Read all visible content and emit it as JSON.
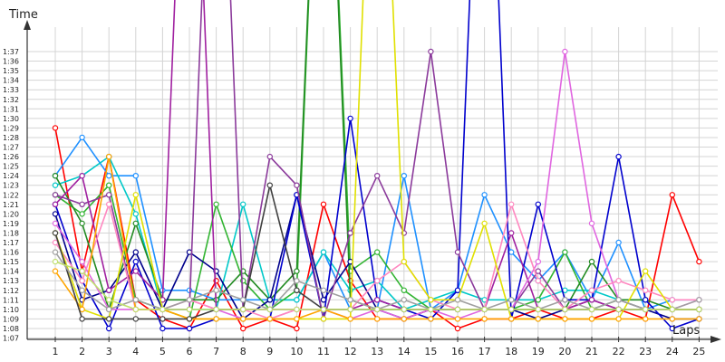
{
  "chart_data": {
    "type": "line",
    "ylabel": "Time",
    "xlabel": "Laps",
    "x": [
      1,
      2,
      3,
      4,
      5,
      6,
      7,
      8,
      9,
      10,
      11,
      12,
      13,
      14,
      15,
      16,
      17,
      18,
      19,
      20,
      21,
      22,
      23,
      24,
      25
    ],
    "xticks": [
      "1",
      "2",
      "3",
      "4",
      "5",
      "6",
      "7",
      "8",
      "9",
      "10",
      "11",
      "12",
      "13",
      "14",
      "15",
      "16",
      "17",
      "18",
      "19",
      "20",
      "21",
      "22",
      "23",
      "24",
      "25"
    ],
    "yticks": [
      "1:07",
      "1:08",
      "1:09",
      "1:10",
      "1:11",
      "1:12",
      "1:13",
      "1:14",
      "1:15",
      "1:16",
      "1:17",
      "1:18",
      "1:19",
      "1:20",
      "1:21",
      "1:22",
      "1:23",
      "1:24",
      "1:25",
      "1:26",
      "1:27",
      "1:28",
      "1:29",
      "1:30",
      "1:31",
      "1:32",
      "1:33",
      "1:34",
      "1:35",
      "1:36",
      "1:37"
    ],
    "ylim_seconds": [
      66,
      98
    ],
    "y_unit": "seconds",
    "grid": true,
    "series": [
      {
        "color": "#ff0000",
        "values": [
          89,
          74,
          86,
          71,
          69,
          68,
          73,
          68,
          69,
          68,
          81,
          73,
          69,
          69,
          70,
          68,
          69,
          69,
          70,
          69,
          69,
          70,
          69,
          82,
          75
        ]
      },
      {
        "color": "#1e90ff",
        "values": [
          84,
          88,
          84,
          84,
          72,
          72,
          71,
          71,
          71,
          71,
          76,
          70,
          70,
          84,
          70,
          72,
          82,
          76,
          73,
          76,
          71,
          77,
          70,
          71,
          71
        ]
      },
      {
        "color": "#00c8c8",
        "values": [
          83,
          84,
          86,
          80,
          70,
          70,
          70,
          81,
          71,
          71,
          76,
          72,
          73,
          70,
          71,
          72,
          71,
          71,
          71,
          72,
          72,
          71,
          70,
          70,
          70
        ]
      },
      {
        "color": "#32b432",
        "values": [
          82,
          80,
          83,
          71,
          70,
          69,
          81,
          73,
          70,
          72,
          140,
          74,
          76,
          72,
          70,
          70,
          70,
          70,
          71,
          76,
          70,
          71,
          70,
          70,
          70
        ]
      },
      {
        "color": "#228b22",
        "values": [
          84,
          79,
          70,
          79,
          71,
          71,
          71,
          74,
          71,
          74,
          140,
          71,
          70,
          70,
          70,
          70,
          70,
          70,
          70,
          70,
          75,
          71,
          71,
          70,
          70
        ]
      },
      {
        "color": "#00008b",
        "values": [
          80,
          71,
          72,
          76,
          70,
          76,
          74,
          69,
          71,
          82,
          71,
          75,
          70,
          69,
          70,
          70,
          70,
          70,
          69,
          70,
          70,
          70,
          70,
          69,
          69
        ]
      },
      {
        "color": "#0000cd",
        "values": [
          81,
          73,
          68,
          75,
          68,
          68,
          69,
          69,
          69,
          82,
          69,
          90,
          71,
          70,
          69,
          72,
          140,
          69,
          81,
          71,
          71,
          86,
          71,
          68,
          69
        ]
      },
      {
        "color": "#8b3a9b",
        "values": [
          82,
          81,
          82,
          70,
          70,
          70,
          140,
          70,
          86,
          83,
          69,
          78,
          84,
          78,
          97,
          76,
          70,
          70,
          74,
          70,
          71,
          70,
          70,
          70,
          70
        ]
      },
      {
        "color": "#a020a0",
        "values": [
          81,
          84,
          72,
          74,
          71,
          140,
          70,
          70,
          70,
          70,
          70,
          70,
          71,
          70,
          70,
          70,
          70,
          78,
          70,
          70,
          71,
          70,
          70,
          70,
          70
        ]
      },
      {
        "color": "#e066e0",
        "values": [
          79,
          75,
          70,
          70,
          70,
          71,
          70,
          69,
          69,
          70,
          70,
          69,
          70,
          69,
          70,
          69,
          70,
          70,
          75,
          97,
          79,
          71,
          70,
          70,
          71
        ]
      },
      {
        "color": "#ff88c0",
        "values": [
          77,
          73,
          81,
          70,
          70,
          71,
          70,
          70,
          69,
          70,
          70,
          70,
          73,
          75,
          71,
          70,
          70,
          81,
          73,
          70,
          72,
          73,
          72,
          71,
          71
        ]
      },
      {
        "color": "#e0e000",
        "values": [
          78,
          70,
          69,
          82,
          70,
          69,
          69,
          69,
          69,
          69,
          69,
          69,
          140,
          75,
          71,
          71,
          79,
          69,
          69,
          69,
          69,
          69,
          74,
          70,
          70
        ]
      },
      {
        "color": "#ffa500",
        "values": [
          74,
          70,
          86,
          70,
          70,
          69,
          69,
          69,
          69,
          69,
          70,
          69,
          69,
          69,
          69,
          69,
          69,
          69,
          69,
          69,
          69,
          69,
          69,
          69,
          69
        ]
      },
      {
        "color": "#404040",
        "values": [
          78,
          69,
          69,
          69,
          69,
          69,
          70,
          70,
          83,
          72,
          70,
          70,
          70,
          70,
          70,
          70,
          70,
          70,
          70,
          70,
          70,
          70,
          70,
          70,
          70
        ]
      },
      {
        "color": "#a0a0a0",
        "values": [
          76,
          72,
          70,
          71,
          70,
          71,
          72,
          71,
          70,
          73,
          72,
          71,
          70,
          71,
          70,
          71,
          70,
          71,
          70,
          71,
          70,
          71,
          70,
          70,
          71
        ]
      },
      {
        "color": "#c0e070",
        "values": [
          75,
          74,
          71,
          70,
          70,
          70,
          70,
          70,
          70,
          70,
          70,
          70,
          70,
          70,
          70,
          70,
          70,
          70,
          70,
          70,
          70,
          70,
          70,
          70,
          70
        ]
      }
    ]
  }
}
